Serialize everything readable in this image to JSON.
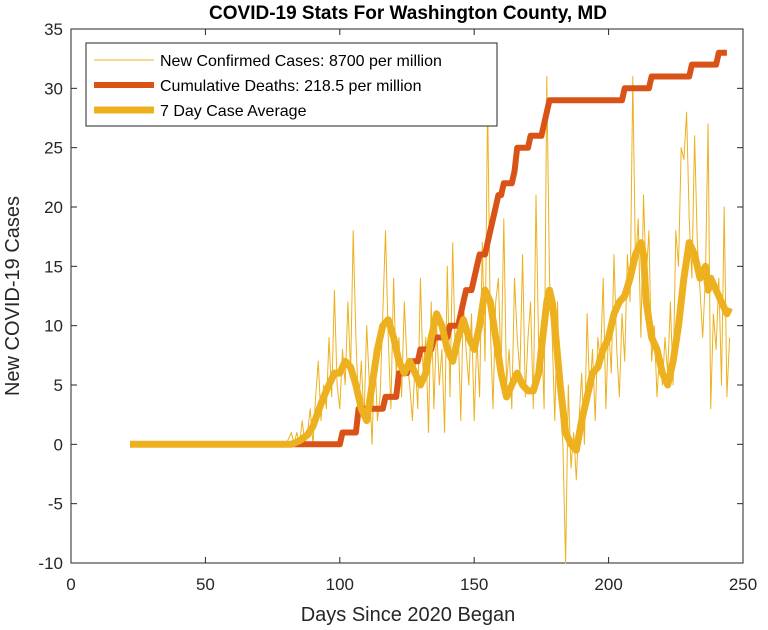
{
  "chart_data": {
    "type": "line",
    "title": "COVID-19 Stats For Washington County, MD",
    "xlabel": "Days Since 2020 Began",
    "ylabel": "New COVID-19 Cases",
    "xlim": [
      0,
      250
    ],
    "ylim": [
      -10,
      35
    ],
    "xticks": [
      "0",
      "50",
      "100",
      "150",
      "200",
      "250"
    ],
    "yticks": [
      "-10",
      "-5",
      "0",
      "5",
      "10",
      "15",
      "20",
      "25",
      "30",
      "35"
    ],
    "grid": false,
    "legend_position": "top-left",
    "series": [
      {
        "name": "New Confirmed Cases: 8700 per million",
        "color": "#EDB120",
        "style": "thin",
        "points": [
          [
            22,
            0
          ],
          [
            80,
            0
          ],
          [
            82,
            1
          ],
          [
            83,
            0
          ],
          [
            84,
            1
          ],
          [
            85,
            0
          ],
          [
            86,
            2
          ],
          [
            87,
            0
          ],
          [
            88,
            1
          ],
          [
            89,
            3
          ],
          [
            90,
            0
          ],
          [
            91,
            4
          ],
          [
            92,
            7
          ],
          [
            93,
            2
          ],
          [
            94,
            5
          ],
          [
            95,
            3
          ],
          [
            96,
            9
          ],
          [
            97,
            4
          ],
          [
            98,
            13
          ],
          [
            99,
            5
          ],
          [
            100,
            3
          ],
          [
            101,
            8
          ],
          [
            102,
            5
          ],
          [
            103,
            12
          ],
          [
            104,
            6
          ],
          [
            105,
            18
          ],
          [
            106,
            9
          ],
          [
            107,
            3
          ],
          [
            108,
            7
          ],
          [
            109,
            2
          ],
          [
            110,
            10
          ],
          [
            111,
            5
          ],
          [
            112,
            0
          ],
          [
            113,
            8
          ],
          [
            114,
            2
          ],
          [
            115,
            4
          ],
          [
            116,
            11
          ],
          [
            117,
            18
          ],
          [
            118,
            9
          ],
          [
            119,
            3
          ],
          [
            120,
            14
          ],
          [
            121,
            6
          ],
          [
            122,
            9
          ],
          [
            123,
            4
          ],
          [
            124,
            12
          ],
          [
            125,
            7
          ],
          [
            126,
            5
          ],
          [
            127,
            2
          ],
          [
            128,
            7
          ],
          [
            129,
            3
          ],
          [
            130,
            14
          ],
          [
            131,
            6
          ],
          [
            132,
            9
          ],
          [
            133,
            1
          ],
          [
            134,
            12
          ],
          [
            135,
            3
          ],
          [
            136,
            10
          ],
          [
            137,
            5
          ],
          [
            138,
            8
          ],
          [
            139,
            1
          ],
          [
            140,
            15
          ],
          [
            141,
            4
          ],
          [
            142,
            17
          ],
          [
            143,
            7
          ],
          [
            144,
            10
          ],
          [
            145,
            2
          ],
          [
            146,
            12
          ],
          [
            147,
            8
          ],
          [
            148,
            5
          ],
          [
            149,
            11
          ],
          [
            150,
            2
          ],
          [
            151,
            9
          ],
          [
            152,
            4
          ],
          [
            153,
            17
          ],
          [
            154,
            7
          ],
          [
            155,
            29
          ],
          [
            156,
            10
          ],
          [
            157,
            3
          ],
          [
            158,
            12
          ],
          [
            159,
            14
          ],
          [
            160,
            6
          ],
          [
            161,
            19
          ],
          [
            162,
            5
          ],
          [
            163,
            8
          ],
          [
            164,
            3
          ],
          [
            165,
            14
          ],
          [
            166,
            9
          ],
          [
            167,
            6
          ],
          [
            168,
            16
          ],
          [
            169,
            4
          ],
          [
            170,
            9
          ],
          [
            171,
            12
          ],
          [
            172,
            3
          ],
          [
            173,
            21
          ],
          [
            174,
            8
          ],
          [
            175,
            10
          ],
          [
            176,
            3
          ],
          [
            177,
            31
          ],
          [
            178,
            14
          ],
          [
            179,
            9
          ],
          [
            180,
            2
          ],
          [
            181,
            12
          ],
          [
            182,
            3
          ],
          [
            183,
            0
          ],
          [
            184,
            -10
          ],
          [
            185,
            5
          ],
          [
            186,
            -2
          ],
          [
            187,
            1
          ],
          [
            188,
            -3
          ],
          [
            189,
            2
          ],
          [
            190,
            6
          ],
          [
            191,
            0
          ],
          [
            192,
            11
          ],
          [
            193,
            4
          ],
          [
            194,
            8
          ],
          [
            195,
            2
          ],
          [
            196,
            9
          ],
          [
            197,
            7
          ],
          [
            198,
            14
          ],
          [
            199,
            3
          ],
          [
            200,
            10
          ],
          [
            201,
            6
          ],
          [
            202,
            16
          ],
          [
            203,
            8
          ],
          [
            204,
            4
          ],
          [
            205,
            11
          ],
          [
            206,
            7
          ],
          [
            207,
            16
          ],
          [
            208,
            12
          ],
          [
            209,
            31
          ],
          [
            210,
            15
          ],
          [
            211,
            19
          ],
          [
            212,
            9
          ],
          [
            213,
            21
          ],
          [
            214,
            14
          ],
          [
            215,
            18
          ],
          [
            216,
            7
          ],
          [
            217,
            10
          ],
          [
            218,
            4
          ],
          [
            219,
            8
          ],
          [
            220,
            5
          ],
          [
            221,
            9
          ],
          [
            222,
            6
          ],
          [
            223,
            12
          ],
          [
            224,
            5
          ],
          [
            225,
            18
          ],
          [
            226,
            15
          ],
          [
            227,
            25
          ],
          [
            228,
            24
          ],
          [
            229,
            28
          ],
          [
            230,
            19
          ],
          [
            231,
            14
          ],
          [
            232,
            26
          ],
          [
            233,
            17
          ],
          [
            234,
            13
          ],
          [
            235,
            9
          ],
          [
            236,
            14
          ],
          [
            237,
            27
          ],
          [
            238,
            3
          ],
          [
            239,
            11
          ],
          [
            240,
            8
          ],
          [
            241,
            14
          ],
          [
            242,
            5
          ],
          [
            243,
            20
          ],
          [
            244,
            4
          ],
          [
            245,
            9
          ]
        ]
      },
      {
        "name": "Cumulative Deaths: 218.5 per million",
        "color": "#D95319",
        "style": "thick",
        "points": [
          [
            22,
            0
          ],
          [
            100,
            0
          ],
          [
            101,
            1
          ],
          [
            106,
            1
          ],
          [
            107,
            3
          ],
          [
            116,
            3
          ],
          [
            117,
            4
          ],
          [
            121,
            4
          ],
          [
            122,
            6
          ],
          [
            125,
            6
          ],
          [
            126,
            7
          ],
          [
            129,
            7
          ],
          [
            130,
            8
          ],
          [
            134,
            8
          ],
          [
            135,
            9
          ],
          [
            140,
            9
          ],
          [
            141,
            10
          ],
          [
            144,
            10
          ],
          [
            145,
            11
          ],
          [
            146,
            12
          ],
          [
            147,
            13
          ],
          [
            149,
            13
          ],
          [
            150,
            14
          ],
          [
            151,
            15
          ],
          [
            152,
            16
          ],
          [
            154,
            16
          ],
          [
            155,
            17
          ],
          [
            156,
            18
          ],
          [
            157,
            19
          ],
          [
            158,
            20
          ],
          [
            159,
            21
          ],
          [
            160,
            21
          ],
          [
            161,
            22
          ],
          [
            164,
            22
          ],
          [
            165,
            23
          ],
          [
            166,
            25
          ],
          [
            170,
            25
          ],
          [
            171,
            26
          ],
          [
            175,
            26
          ],
          [
            176,
            27
          ],
          [
            177,
            28
          ],
          [
            178,
            29
          ],
          [
            205,
            29
          ],
          [
            206,
            30
          ],
          [
            215,
            30
          ],
          [
            216,
            31
          ],
          [
            230,
            31
          ],
          [
            231,
            32
          ],
          [
            240,
            32
          ],
          [
            241,
            33
          ],
          [
            244,
            33
          ]
        ]
      },
      {
        "name": "7 Day Case Average",
        "color": "#EDB120",
        "style": "thicker",
        "points": [
          [
            22,
            0
          ],
          [
            82,
            0
          ],
          [
            85,
            0.3
          ],
          [
            88,
            0.8
          ],
          [
            90,
            1.5
          ],
          [
            92,
            2.8
          ],
          [
            94,
            4
          ],
          [
            96,
            5
          ],
          [
            98,
            6
          ],
          [
            100,
            6
          ],
          [
            102,
            7
          ],
          [
            104,
            6.5
          ],
          [
            106,
            5
          ],
          [
            108,
            3
          ],
          [
            110,
            2
          ],
          [
            112,
            5
          ],
          [
            114,
            8
          ],
          [
            116,
            10
          ],
          [
            118,
            10.5
          ],
          [
            120,
            9
          ],
          [
            122,
            7
          ],
          [
            124,
            6
          ],
          [
            126,
            7
          ],
          [
            128,
            6
          ],
          [
            130,
            5
          ],
          [
            132,
            6
          ],
          [
            134,
            9
          ],
          [
            136,
            11
          ],
          [
            138,
            10
          ],
          [
            140,
            8
          ],
          [
            142,
            7
          ],
          [
            144,
            9
          ],
          [
            146,
            10.5
          ],
          [
            148,
            9
          ],
          [
            150,
            8
          ],
          [
            152,
            10
          ],
          [
            154,
            13
          ],
          [
            156,
            12
          ],
          [
            158,
            9
          ],
          [
            160,
            6
          ],
          [
            162,
            4
          ],
          [
            164,
            5
          ],
          [
            166,
            6
          ],
          [
            168,
            5
          ],
          [
            170,
            4.5
          ],
          [
            172,
            4.5
          ],
          [
            174,
            6
          ],
          [
            176,
            10
          ],
          [
            177,
            12
          ],
          [
            178,
            13
          ],
          [
            179,
            12
          ],
          [
            180,
            10
          ],
          [
            182,
            5
          ],
          [
            184,
            1
          ],
          [
            186,
            0
          ],
          [
            188,
            -0.5
          ],
          [
            190,
            2
          ],
          [
            192,
            4
          ],
          [
            194,
            6
          ],
          [
            196,
            6.5
          ],
          [
            198,
            8
          ],
          [
            200,
            9
          ],
          [
            202,
            11
          ],
          [
            204,
            12
          ],
          [
            206,
            12.5
          ],
          [
            208,
            14
          ],
          [
            210,
            16
          ],
          [
            212,
            17
          ],
          [
            213,
            16
          ],
          [
            214,
            12
          ],
          [
            216,
            9
          ],
          [
            218,
            8
          ],
          [
            220,
            6
          ],
          [
            222,
            5
          ],
          [
            224,
            7
          ],
          [
            226,
            10
          ],
          [
            228,
            14
          ],
          [
            230,
            17
          ],
          [
            232,
            16
          ],
          [
            234,
            14
          ],
          [
            236,
            15
          ],
          [
            237,
            13
          ],
          [
            238,
            14
          ],
          [
            240,
            13
          ],
          [
            242,
            12
          ],
          [
            244,
            11
          ],
          [
            245,
            11.5
          ]
        ]
      }
    ]
  }
}
